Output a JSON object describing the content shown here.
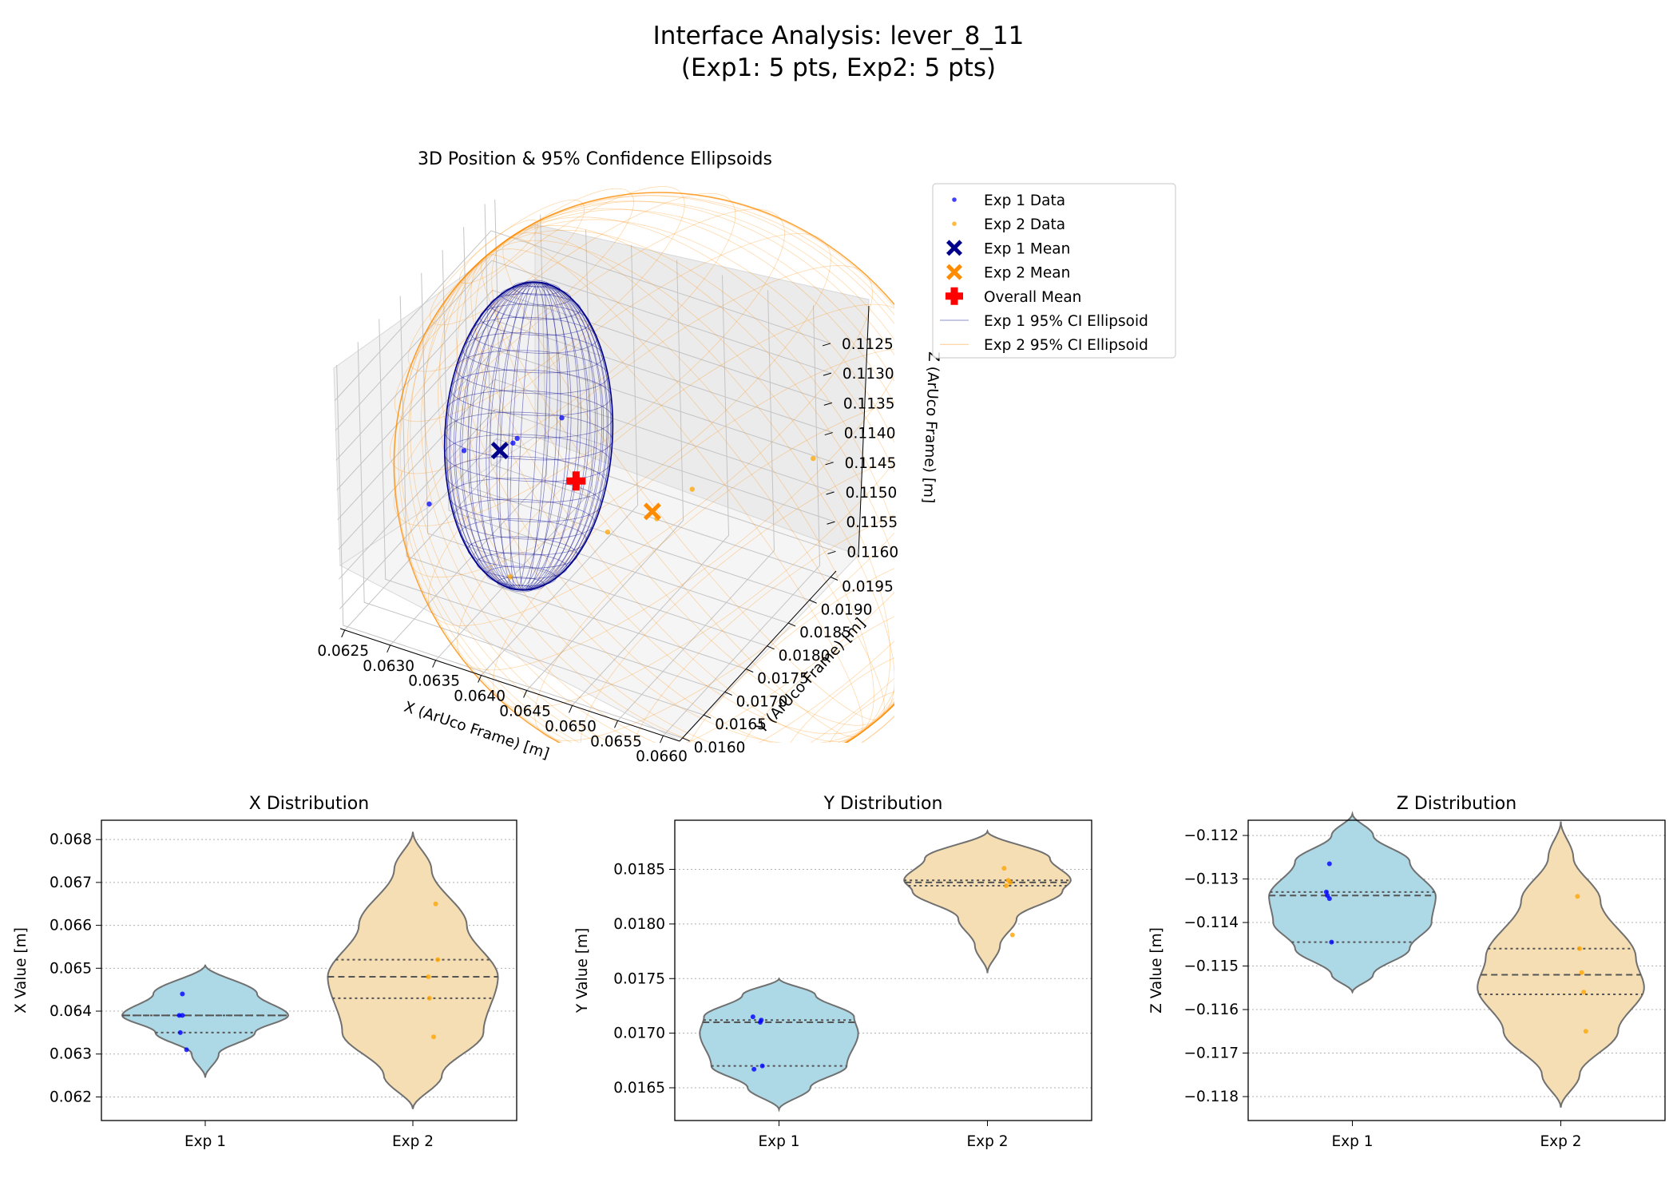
{
  "figure": {
    "title_line1": "Interface Analysis: lever_8_11",
    "title_line2": "(Exp1: 5 pts, Exp2: 5 pts)"
  },
  "colors": {
    "exp1_data": "#0000ff",
    "exp2_data": "#ffa500",
    "exp1_mean": "#00008b",
    "exp2_mean": "#ff8c00",
    "overall_mean": "#ff0000",
    "exp1_ellipsoid": "#00008b",
    "exp2_ellipsoid": "#ff8c00",
    "exp1_violin": "#add8e6",
    "exp2_violin": "#f5deb3",
    "violin_edge": "#707070"
  },
  "chart_data": [
    {
      "type": "scatter",
      "subtype": "3d",
      "title": "3D Position & 95% Confidence Ellipsoids",
      "xlabel": "X (ArUco Frame) [m]",
      "ylabel": "Y (ArUco Frame) [m]",
      "zlabel": "Z (ArUco Frame) [m]",
      "xticks": [
        "0.0625",
        "0.0630",
        "0.0635",
        "0.0640",
        "0.0645",
        "0.0650",
        "0.0655",
        "0.0660"
      ],
      "yticks": [
        "0.0160",
        "0.0165",
        "0.0170",
        "0.0175",
        "0.0180",
        "0.0185",
        "0.0190",
        "0.0195"
      ],
      "zticks": [
        "0.1125",
        "0.1130",
        "0.1135",
        "0.1140",
        "0.1145",
        "0.1150",
        "0.1155",
        "0.1160"
      ],
      "legend_position": "top-right",
      "legend": [
        {
          "label": "Exp 1 Data",
          "marker": "dot",
          "color": "#0000ff"
        },
        {
          "label": "Exp 2 Data",
          "marker": "dot",
          "color": "#ffa500"
        },
        {
          "label": "Exp 1 Mean",
          "marker": "x",
          "color": "#00008b"
        },
        {
          "label": "Exp 2 Mean",
          "marker": "x",
          "color": "#ff8c00"
        },
        {
          "label": "Overall Mean",
          "marker": "plus",
          "color": "#ff0000"
        },
        {
          "label": "Exp 1 95% CI Ellipsoid",
          "marker": "line",
          "color": "#00008b"
        },
        {
          "label": "Exp 2 95% CI Ellipsoid",
          "marker": "line",
          "color": "#ff8c00"
        }
      ],
      "series": [
        {
          "name": "Exp 1 Data",
          "points": [
            [
              0.0644,
              0.0171,
              -0.1127
            ],
            [
              0.0639,
              0.0171,
              -0.1133
            ],
            [
              0.0639,
              0.017,
              -0.1133
            ],
            [
              0.0635,
              0.0167,
              -0.1134
            ],
            [
              0.0631,
              0.0167,
              -0.1145
            ]
          ]
        },
        {
          "name": "Exp 2 Data",
          "points": [
            [
              0.0665,
              0.0185,
              -0.1134
            ],
            [
              0.0652,
              0.0184,
              -0.1145
            ],
            [
              0.0648,
              0.0184,
              -0.1152
            ],
            [
              0.0643,
              0.0183,
              -0.1156
            ],
            [
              0.0634,
              0.0179,
              -0.1165
            ]
          ]
        },
        {
          "name": "Exp 1 Mean",
          "points": [
            [
              0.0638,
              0.0169,
              -0.1134
            ]
          ]
        },
        {
          "name": "Exp 2 Mean",
          "points": [
            [
              0.0648,
              0.0183,
              -0.115
            ]
          ]
        },
        {
          "name": "Overall Mean",
          "points": [
            [
              0.0643,
              0.0176,
              -0.1142
            ]
          ]
        }
      ]
    },
    {
      "type": "violin",
      "title": "X Distribution",
      "ylabel": "X Value [m]",
      "categories": [
        "Exp 1",
        "Exp 2"
      ],
      "ylim": [
        0.06145,
        0.06845
      ],
      "yticks": [
        0.062,
        0.063,
        0.064,
        0.065,
        0.066,
        0.067,
        0.068
      ],
      "ytick_labels": [
        "0.062",
        "0.063",
        "0.064",
        "0.065",
        "0.066",
        "0.067",
        "0.068"
      ],
      "groups": [
        {
          "name": "Exp 1",
          "min": 0.06245,
          "max": 0.06508,
          "profile": [
            [
              0.06245,
              0.0
            ],
            [
              0.063,
              0.13
            ],
            [
              0.0635,
              0.48
            ],
            [
              0.0639,
              0.8
            ],
            [
              0.0644,
              0.5
            ],
            [
              0.06508,
              0.0
            ]
          ],
          "q1": 0.0635,
          "median": 0.0639,
          "q3": 0.0639,
          "points": [
            0.0644,
            0.0639,
            0.0639,
            0.0635,
            0.0631
          ],
          "jitter": [
            -0.22,
            -0.25,
            -0.22,
            -0.24,
            -0.18
          ]
        },
        {
          "name": "Exp 2",
          "min": 0.06172,
          "max": 0.06818,
          "profile": [
            [
              0.06172,
              0.0
            ],
            [
              0.0625,
              0.28
            ],
            [
              0.0635,
              0.68
            ],
            [
              0.0648,
              0.82
            ],
            [
              0.066,
              0.52
            ],
            [
              0.0673,
              0.18
            ],
            [
              0.06818,
              0.0
            ]
          ],
          "q1": 0.0643,
          "median": 0.0648,
          "q3": 0.0652,
          "points": [
            0.0665,
            0.0652,
            0.0648,
            0.0643,
            0.0634
          ],
          "jitter": [
            0.22,
            0.24,
            0.15,
            0.16,
            0.2
          ]
        }
      ]
    },
    {
      "type": "violin",
      "title": "Y Distribution",
      "ylabel": "Y Value [m]",
      "categories": [
        "Exp 1",
        "Exp 2"
      ],
      "ylim": [
        0.0162,
        0.01895
      ],
      "yticks": [
        0.0165,
        0.017,
        0.0175,
        0.018,
        0.0185
      ],
      "ytick_labels": [
        "0.0165",
        "0.0170",
        "0.0175",
        "0.0180",
        "0.0185"
      ],
      "groups": [
        {
          "name": "Exp 1",
          "min": 0.0163,
          "max": 0.0175,
          "profile": [
            [
              0.0163,
              0.0
            ],
            [
              0.0165,
              0.3
            ],
            [
              0.0167,
              0.65
            ],
            [
              0.017,
              0.76
            ],
            [
              0.01715,
              0.72
            ],
            [
              0.01735,
              0.35
            ],
            [
              0.0175,
              0.0
            ]
          ],
          "q1": 0.0167,
          "median": 0.0171,
          "q3": 0.01712,
          "points": [
            0.01715,
            0.01712,
            0.0171,
            0.0167,
            0.01667
          ],
          "jitter": [
            -0.25,
            -0.17,
            -0.18,
            -0.16,
            -0.24
          ]
        },
        {
          "name": "Exp 2",
          "min": 0.01755,
          "max": 0.01885,
          "profile": [
            [
              0.01755,
              0.0
            ],
            [
              0.0178,
              0.12
            ],
            [
              0.01805,
              0.28
            ],
            [
              0.0183,
              0.72
            ],
            [
              0.0184,
              0.8
            ],
            [
              0.0186,
              0.6
            ],
            [
              0.01885,
              0.0
            ]
          ],
          "q1": 0.01835,
          "median": 0.01838,
          "q3": 0.0184,
          "points": [
            0.01851,
            0.0184,
            0.01838,
            0.01835,
            0.0179
          ],
          "jitter": [
            0.16,
            0.2,
            0.22,
            0.18,
            0.24
          ]
        }
      ]
    },
    {
      "type": "violin",
      "title": "Z Distribution",
      "ylabel": "Z Value [m]",
      "categories": [
        "Exp 1",
        "Exp 2"
      ],
      "ylim": [
        -0.11855,
        -0.11165
      ],
      "yticks": [
        -0.118,
        -0.117,
        -0.116,
        -0.115,
        -0.114,
        -0.113,
        -0.112
      ],
      "ytick_labels": [
        "−0.118",
        "−0.117",
        "−0.116",
        "−0.115",
        "−0.114",
        "−0.113",
        "−0.112"
      ],
      "groups": [
        {
          "name": "Exp 1",
          "min": -0.1156,
          "max": -0.1115,
          "profile": [
            [
              -0.1156,
              0.0
            ],
            [
              -0.1152,
              0.2
            ],
            [
              -0.1146,
              0.55
            ],
            [
              -0.114,
              0.76
            ],
            [
              -0.1134,
              0.8
            ],
            [
              -0.1126,
              0.55
            ],
            [
              -0.112,
              0.2
            ],
            [
              -0.1115,
              0.0
            ]
          ],
          "q1": -0.11445,
          "median": -0.11338,
          "q3": -0.1133,
          "points": [
            -0.11265,
            -0.1133,
            -0.11338,
            -0.11345,
            -0.11445
          ],
          "jitter": [
            -0.22,
            -0.25,
            -0.24,
            -0.22,
            -0.2
          ]
        },
        {
          "name": "Exp 2",
          "min": -0.11825,
          "max": -0.11168,
          "profile": [
            [
              -0.11825,
              0.0
            ],
            [
              -0.1175,
              0.18
            ],
            [
              -0.1165,
              0.55
            ],
            [
              -0.1155,
              0.8
            ],
            [
              -0.1148,
              0.72
            ],
            [
              -0.1135,
              0.38
            ],
            [
              -0.1125,
              0.12
            ],
            [
              -0.11168,
              0.0
            ]
          ],
          "q1": -0.11565,
          "median": -0.1152,
          "q3": -0.1146,
          "points": [
            -0.1134,
            -0.1146,
            -0.11515,
            -0.1156,
            -0.1165
          ],
          "jitter": [
            0.16,
            0.18,
            0.2,
            0.22,
            0.24
          ]
        }
      ]
    }
  ]
}
